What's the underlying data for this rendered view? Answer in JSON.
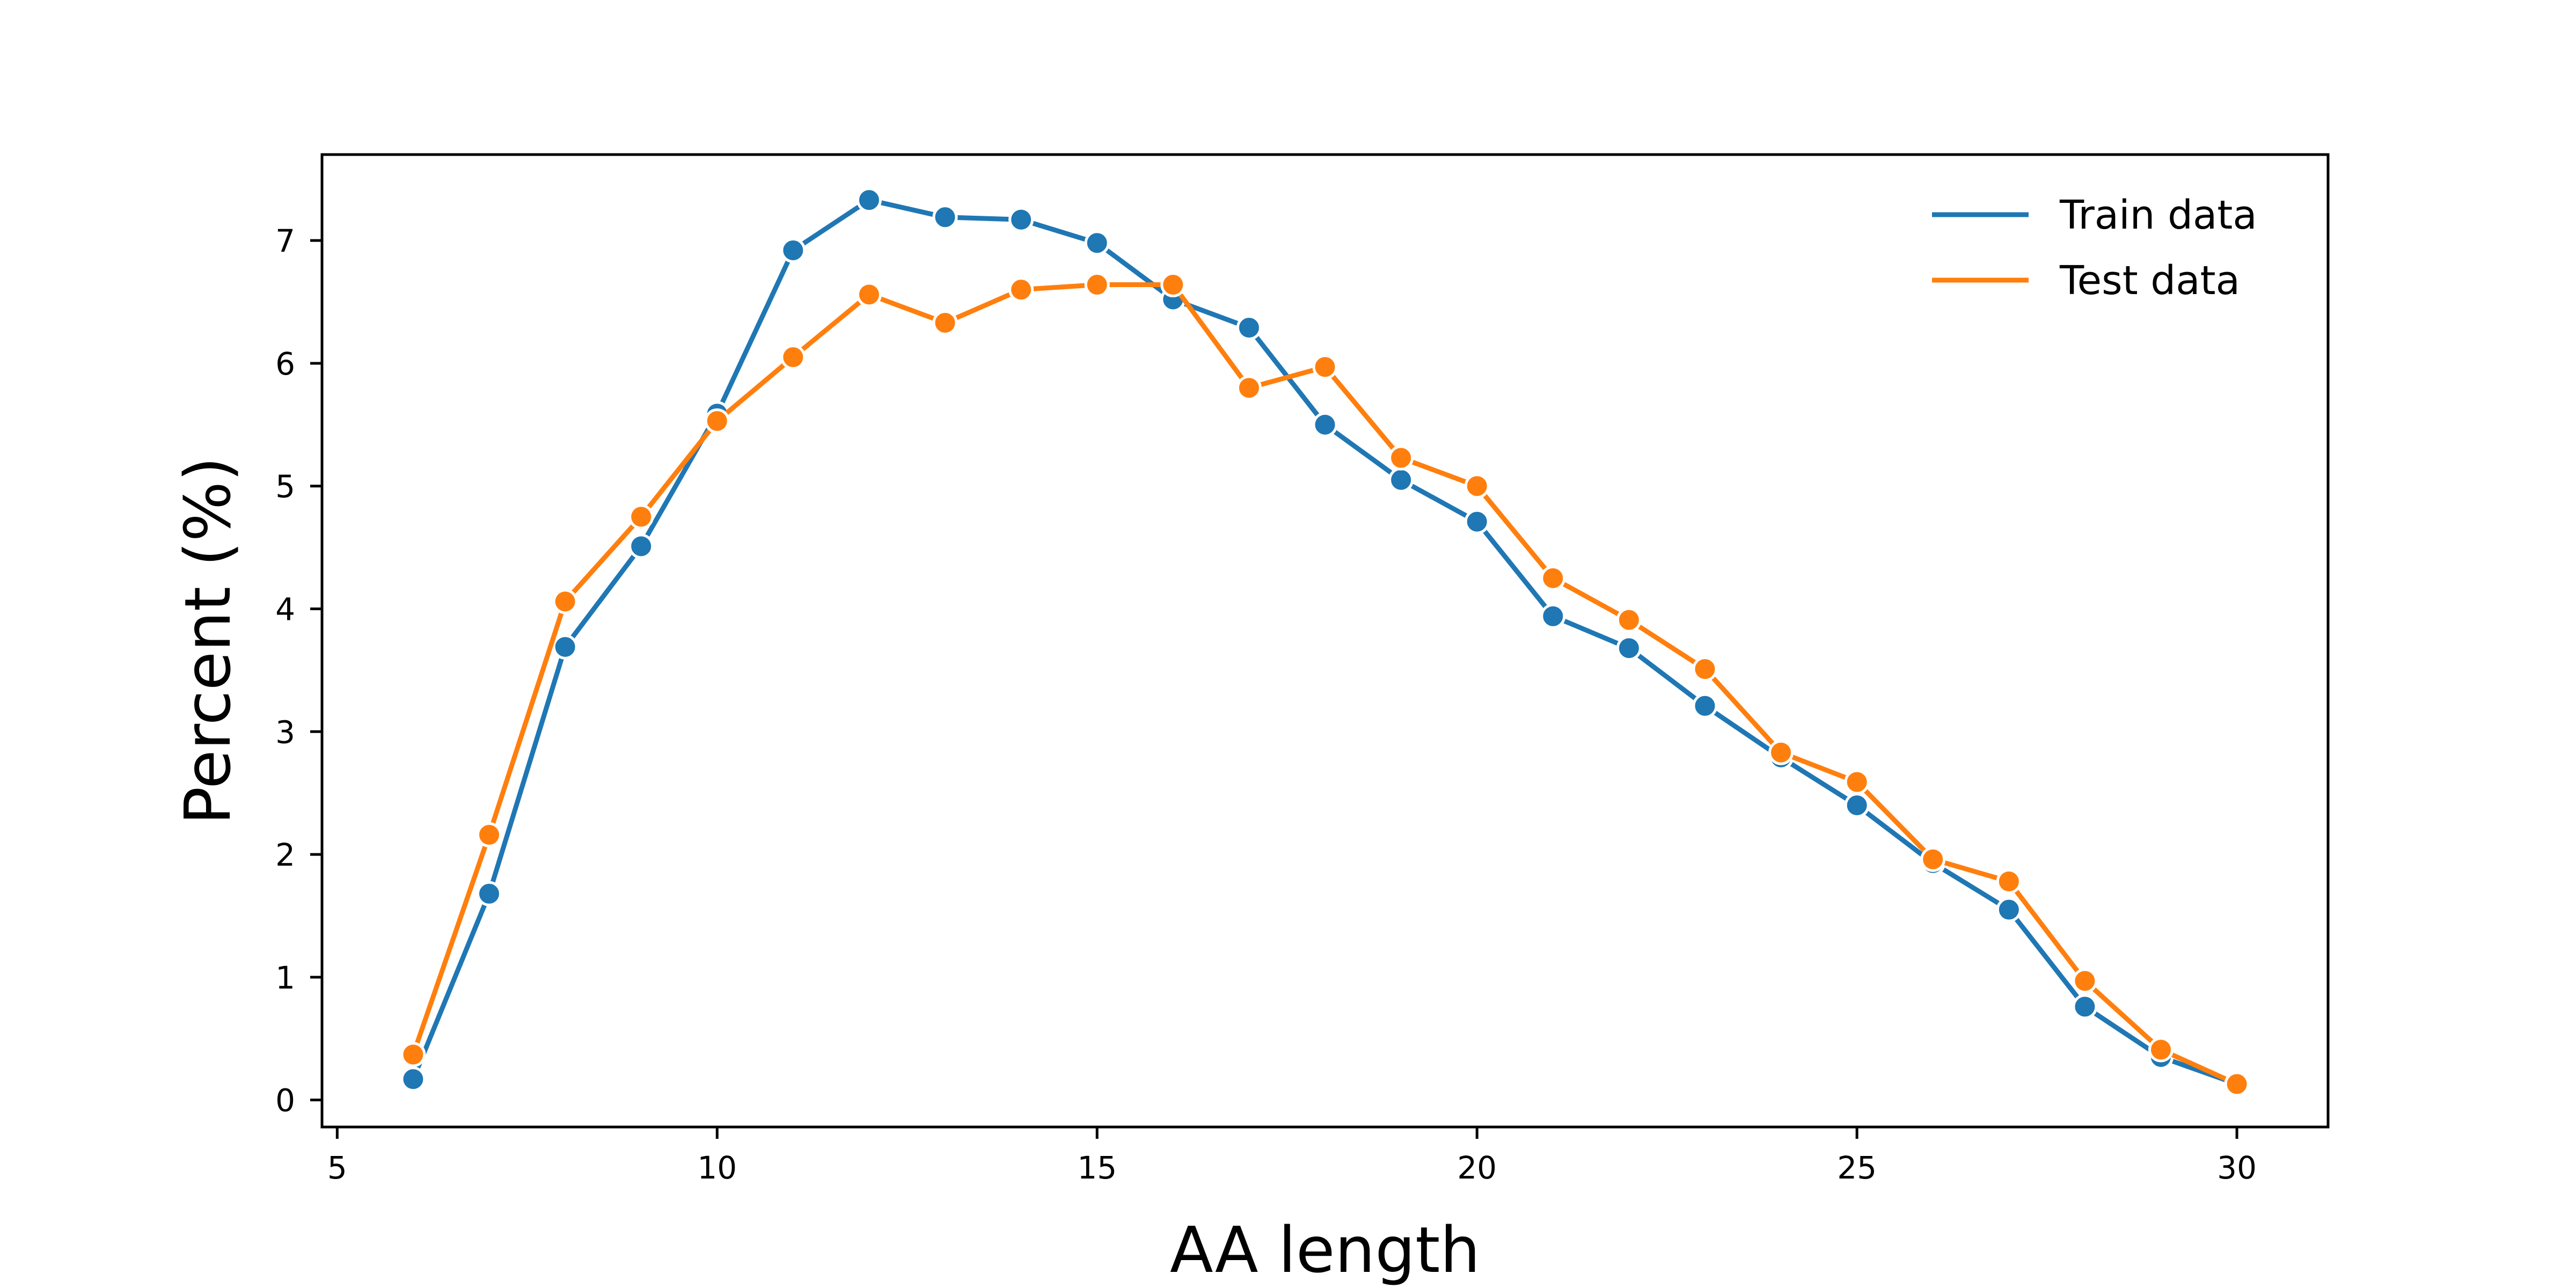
{
  "chart_data": {
    "type": "line",
    "xlabel": "AA length",
    "ylabel": "Percent (%)",
    "xlim": [
      4.8,
      31.2
    ],
    "ylim": [
      -0.22,
      7.7
    ],
    "xticks": [
      5,
      10,
      15,
      20,
      25,
      30
    ],
    "yticks": [
      0,
      1,
      2,
      3,
      4,
      5,
      6,
      7
    ],
    "grid": false,
    "legend_position": "top-right",
    "x": [
      6,
      7,
      8,
      9,
      10,
      11,
      12,
      13,
      14,
      15,
      16,
      17,
      18,
      19,
      20,
      21,
      22,
      23,
      24,
      25,
      26,
      27,
      28,
      29,
      30
    ],
    "series": [
      {
        "name": "Train data",
        "color": "#1f77b4",
        "values": [
          0.17,
          1.68,
          3.69,
          4.51,
          5.59,
          6.92,
          7.33,
          7.19,
          7.17,
          6.98,
          6.52,
          6.29,
          5.5,
          5.05,
          4.71,
          3.94,
          3.68,
          3.21,
          2.79,
          2.4,
          1.93,
          1.55,
          0.76,
          0.35,
          0.13
        ]
      },
      {
        "name": "Test data",
        "color": "#ff7f0e",
        "values": [
          0.37,
          2.16,
          4.06,
          4.75,
          5.53,
          6.05,
          6.56,
          6.33,
          6.6,
          6.64,
          6.64,
          5.8,
          5.97,
          5.23,
          5.0,
          4.25,
          3.91,
          3.51,
          2.83,
          2.59,
          1.96,
          1.78,
          0.97,
          0.41,
          0.13
        ]
      }
    ]
  }
}
